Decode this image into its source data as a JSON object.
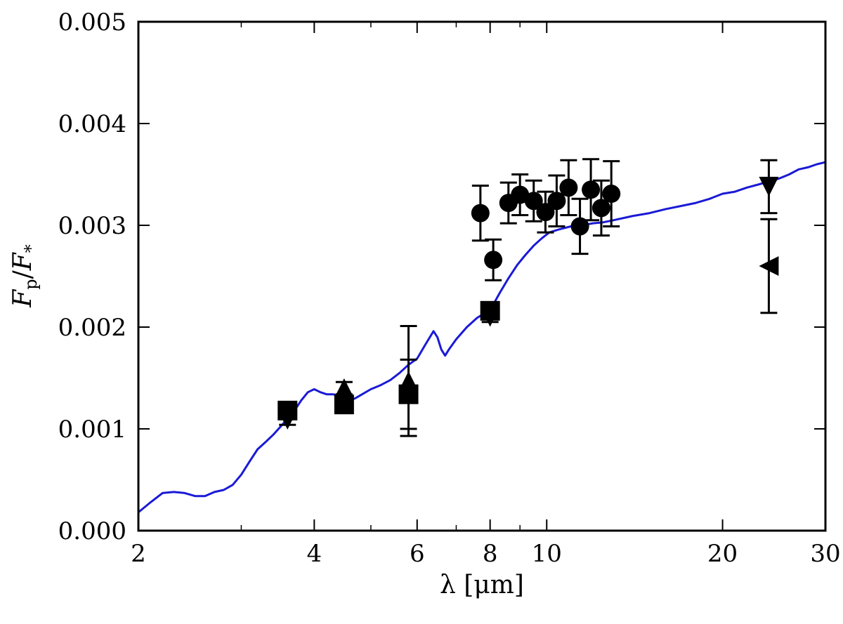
{
  "chart_data": {
    "type": "scatter",
    "x_scale": "log",
    "xlim": [
      2,
      30
    ],
    "ylim": [
      0.0,
      0.005
    ],
    "xlabel": "λ [μm]",
    "ylabel": {
      "main": "F",
      "sub1": "p",
      "slash": "/",
      "main2": "F",
      "sub2": "*"
    },
    "x_ticks": [
      {
        "value": 2,
        "label": "2"
      },
      {
        "value": 4,
        "label": "4"
      },
      {
        "value": 6,
        "label": "6"
      },
      {
        "value": 8,
        "label": "8"
      },
      {
        "value": 10,
        "label": "10"
      },
      {
        "value": 20,
        "label": "20"
      },
      {
        "value": 30,
        "label": "30"
      }
    ],
    "y_ticks": [
      {
        "value": 0.0,
        "label": "0.000"
      },
      {
        "value": 0.001,
        "label": "0.001"
      },
      {
        "value": 0.002,
        "label": "0.002"
      },
      {
        "value": 0.003,
        "label": "0.003"
      },
      {
        "value": 0.004,
        "label": "0.004"
      },
      {
        "value": 0.005,
        "label": "0.005"
      }
    ],
    "model_line": {
      "color": "#1a1ad6",
      "points": [
        [
          2.0,
          0.00018
        ],
        [
          2.1,
          0.00028
        ],
        [
          2.2,
          0.00037
        ],
        [
          2.3,
          0.00038
        ],
        [
          2.4,
          0.00037
        ],
        [
          2.5,
          0.00034
        ],
        [
          2.6,
          0.00034
        ],
        [
          2.7,
          0.00038
        ],
        [
          2.8,
          0.0004
        ],
        [
          2.9,
          0.00045
        ],
        [
          3.0,
          0.00055
        ],
        [
          3.1,
          0.00068
        ],
        [
          3.2,
          0.0008
        ],
        [
          3.3,
          0.00087
        ],
        [
          3.4,
          0.00094
        ],
        [
          3.5,
          0.00102
        ],
        [
          3.6,
          0.0011
        ],
        [
          3.7,
          0.00118
        ],
        [
          3.8,
          0.00128
        ],
        [
          3.9,
          0.00136
        ],
        [
          4.0,
          0.00139
        ],
        [
          4.1,
          0.00136
        ],
        [
          4.2,
          0.00134
        ],
        [
          4.3,
          0.00134
        ],
        [
          4.4,
          0.00133
        ],
        [
          4.5,
          0.0013
        ],
        [
          4.6,
          0.00128
        ],
        [
          4.7,
          0.0013
        ],
        [
          4.8,
          0.00133
        ],
        [
          5.0,
          0.00139
        ],
        [
          5.2,
          0.00143
        ],
        [
          5.4,
          0.00148
        ],
        [
          5.6,
          0.00155
        ],
        [
          5.8,
          0.00163
        ],
        [
          6.0,
          0.00169
        ],
        [
          6.2,
          0.00183
        ],
        [
          6.4,
          0.00196
        ],
        [
          6.5,
          0.0019
        ],
        [
          6.6,
          0.00178
        ],
        [
          6.7,
          0.00172
        ],
        [
          6.8,
          0.00178
        ],
        [
          7.0,
          0.00188
        ],
        [
          7.3,
          0.002
        ],
        [
          7.6,
          0.00209
        ],
        [
          7.9,
          0.00215
        ],
        [
          8.1,
          0.00222
        ],
        [
          8.3,
          0.00233
        ],
        [
          8.6,
          0.00248
        ],
        [
          8.9,
          0.00261
        ],
        [
          9.2,
          0.00271
        ],
        [
          9.5,
          0.0028
        ],
        [
          9.8,
          0.00287
        ],
        [
          10.1,
          0.00293
        ],
        [
          10.5,
          0.00296
        ],
        [
          11.0,
          0.00299
        ],
        [
          11.5,
          0.003
        ],
        [
          12.0,
          0.00302
        ],
        [
          12.5,
          0.00303
        ],
        [
          13.0,
          0.00305
        ],
        [
          14.0,
          0.00309
        ],
        [
          15.0,
          0.00312
        ],
        [
          16.0,
          0.00316
        ],
        [
          17.0,
          0.00319
        ],
        [
          18.0,
          0.00322
        ],
        [
          19.0,
          0.00326
        ],
        [
          20.0,
          0.00331
        ],
        [
          21.0,
          0.00333
        ],
        [
          22.0,
          0.00337
        ],
        [
          23.0,
          0.0034
        ],
        [
          24.0,
          0.00343
        ],
        [
          25.0,
          0.00346
        ],
        [
          26.0,
          0.0035
        ],
        [
          27.0,
          0.00355
        ],
        [
          28.0,
          0.00357
        ],
        [
          29.0,
          0.0036
        ],
        [
          30.0,
          0.00362
        ]
      ]
    },
    "series": [
      {
        "marker": "circle",
        "points": [
          {
            "x": 7.7,
            "y": 0.00312,
            "err": 0.00027
          },
          {
            "x": 8.1,
            "y": 0.00266,
            "err": 0.0002
          },
          {
            "x": 8.6,
            "y": 0.00322,
            "err": 0.0002
          },
          {
            "x": 9.0,
            "y": 0.0033,
            "err": 0.0002
          },
          {
            "x": 9.5,
            "y": 0.00324,
            "err": 0.0002
          },
          {
            "x": 9.95,
            "y": 0.00313,
            "err": 0.0002
          },
          {
            "x": 10.4,
            "y": 0.00324,
            "err": 0.00025
          },
          {
            "x": 10.9,
            "y": 0.00337,
            "err": 0.00027
          },
          {
            "x": 11.4,
            "y": 0.00299,
            "err": 0.00027
          },
          {
            "x": 11.9,
            "y": 0.00335,
            "err": 0.0003
          },
          {
            "x": 12.4,
            "y": 0.00317,
            "err": 0.00027
          },
          {
            "x": 12.9,
            "y": 0.00331,
            "err": 0.00032
          }
        ]
      },
      {
        "marker": "square",
        "points": [
          {
            "x": 3.6,
            "y": 0.00118,
            "err": 5e-05
          },
          {
            "x": 4.5,
            "y": 0.00124,
            "err": 6e-05
          },
          {
            "x": 5.8,
            "y": 0.00134,
            "err": 0.00034
          },
          {
            "x": 8.0,
            "y": 0.00216,
            "err": 8e-05
          }
        ]
      },
      {
        "marker": "triangle-up",
        "points": [
          {
            "x": 4.5,
            "y": 0.0014,
            "err": 6e-05
          },
          {
            "x": 5.8,
            "y": 0.00147,
            "err": 0.00054
          }
        ]
      },
      {
        "marker": "triangle-down",
        "points": [
          {
            "x": 3.6,
            "y": 0.00109,
            "err": 5e-05
          },
          {
            "x": 8.0,
            "y": 0.0021,
            "err": 5e-05
          },
          {
            "x": 24.0,
            "y": 0.00338,
            "err": 0.00026
          }
        ]
      },
      {
        "marker": "triangle-left",
        "points": [
          {
            "x": 24.0,
            "y": 0.0026,
            "err": 0.00046
          }
        ]
      }
    ]
  }
}
